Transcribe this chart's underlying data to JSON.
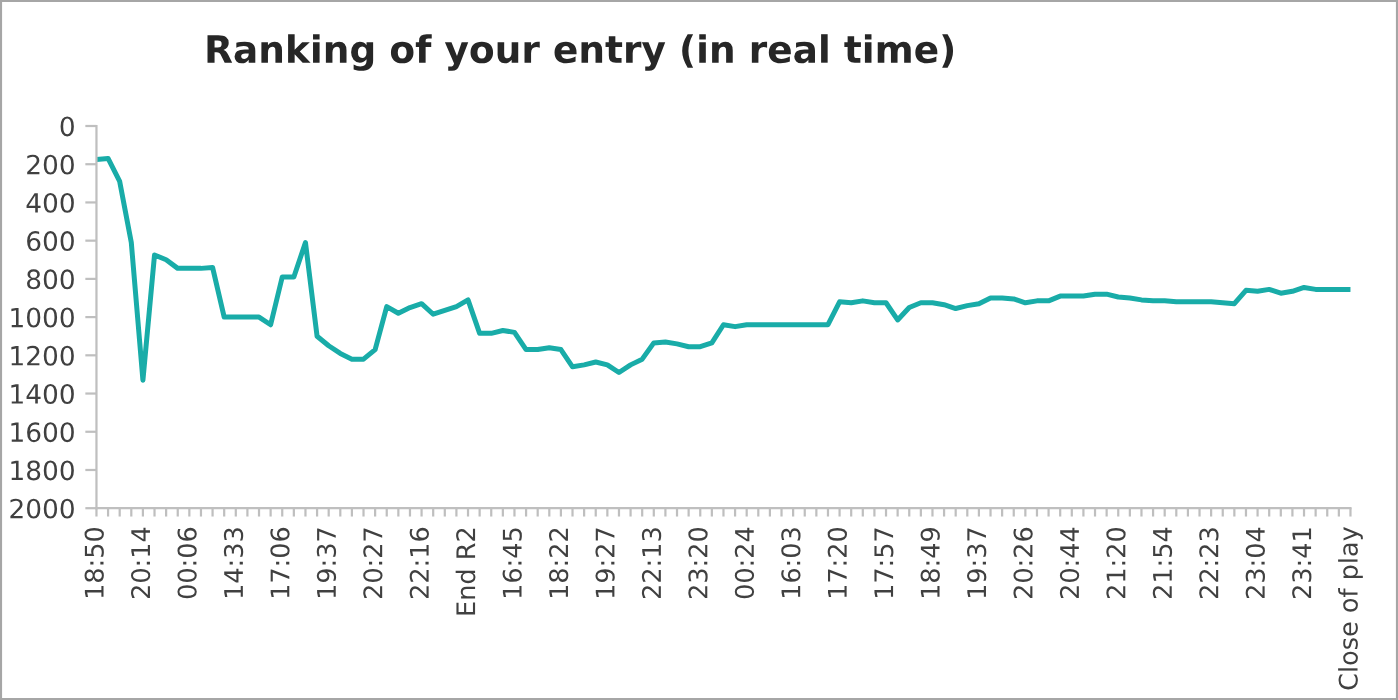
{
  "chart_data": {
    "type": "line",
    "title": "Ranking of your entry (in real time)",
    "categories": [
      "18:50",
      null,
      null,
      null,
      "20:14",
      null,
      null,
      null,
      "00:06",
      null,
      null,
      null,
      "14:33",
      null,
      null,
      null,
      "17:06",
      null,
      null,
      null,
      "19:37",
      null,
      null,
      null,
      "20:27",
      null,
      null,
      null,
      "22:16",
      null,
      null,
      null,
      "End R2",
      null,
      null,
      null,
      "16:45",
      null,
      null,
      null,
      "18:22",
      null,
      null,
      null,
      "19:27",
      null,
      null,
      null,
      "22:13",
      null,
      null,
      null,
      "23:20",
      null,
      null,
      null,
      "00:24",
      null,
      null,
      null,
      "16:03",
      null,
      null,
      null,
      "17:20",
      null,
      null,
      null,
      "17:57",
      null,
      null,
      null,
      "18:49",
      null,
      null,
      null,
      "19:37",
      null,
      null,
      null,
      "20:26",
      null,
      null,
      null,
      "20:44",
      null,
      null,
      null,
      "21:20",
      null,
      null,
      null,
      "21:54",
      null,
      null,
      null,
      "22:23",
      null,
      null,
      null,
      "23:04",
      null,
      null,
      null,
      "23:41",
      null,
      null,
      null,
      "Close of play"
    ],
    "series": [
      {
        "color": "#19aca8",
        "values": [
          175,
          170,
          290,
          610,
          1330,
          675,
          700,
          745,
          745,
          745,
          740,
          1000,
          1000,
          1000,
          1000,
          1040,
          790,
          790,
          610,
          1100,
          1150,
          1190,
          1220,
          1220,
          1170,
          945,
          980,
          950,
          930,
          985,
          965,
          945,
          910,
          1085,
          1085,
          1070,
          1080,
          1170,
          1170,
          1160,
          1170,
          1260,
          1250,
          1235,
          1250,
          1290,
          1250,
          1220,
          1135,
          1130,
          1140,
          1155,
          1155,
          1135,
          1040,
          1050,
          1040,
          1040,
          1040,
          1040,
          1040,
          1040,
          1040,
          1040,
          920,
          925,
          915,
          925,
          925,
          1015,
          950,
          925,
          925,
          935,
          955,
          940,
          930,
          900,
          900,
          905,
          925,
          915,
          915,
          890,
          890,
          890,
          880,
          880,
          895,
          900,
          910,
          915,
          915,
          920,
          920,
          920,
          920,
          925,
          930,
          860,
          865,
          855,
          875,
          865,
          845,
          855,
          855,
          855,
          855
        ]
      }
    ],
    "ylim": [
      2000,
      0
    ],
    "yticks": [
      0,
      200,
      400,
      600,
      800,
      1000,
      1200,
      1400,
      1600,
      1800,
      2000
    ],
    "grid": false,
    "marker": "none",
    "line_style": "solid"
  }
}
